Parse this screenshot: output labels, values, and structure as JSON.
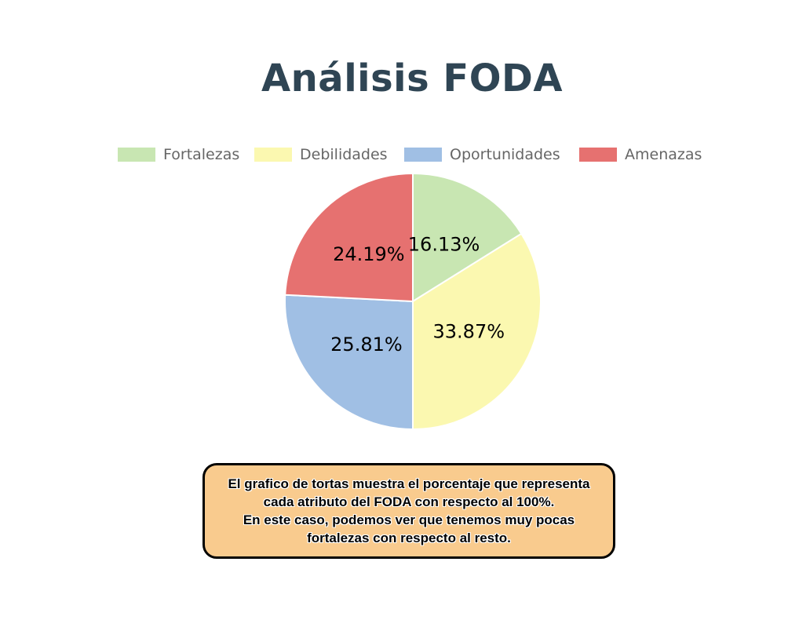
{
  "chart_data": {
    "type": "pie",
    "title": "Análisis FODA",
    "categories": [
      "Fortalezas",
      "Debilidades",
      "Oportunidades",
      "Amenazas"
    ],
    "values": [
      16.13,
      33.87,
      25.81,
      24.19
    ],
    "labels": [
      "16.13%",
      "33.87%",
      "25.81%",
      "24.19%"
    ],
    "colors": [
      "#c8e6b2",
      "#fbf8b0",
      "#a0bfe4",
      "#e67170"
    ],
    "legend_position": "top",
    "start_angle": "12 o'clock",
    "direction": "clockwise"
  },
  "note": {
    "lines": [
      "El grafico de tortas muestra el porcentaje que representa",
      "cada atributo del FODA con respecto al 100%.",
      "En este caso, podemos ver que tenemos muy pocas",
      "fortalezas con respecto al resto."
    ],
    "background": "#f9cb8e",
    "border": "#000000"
  }
}
